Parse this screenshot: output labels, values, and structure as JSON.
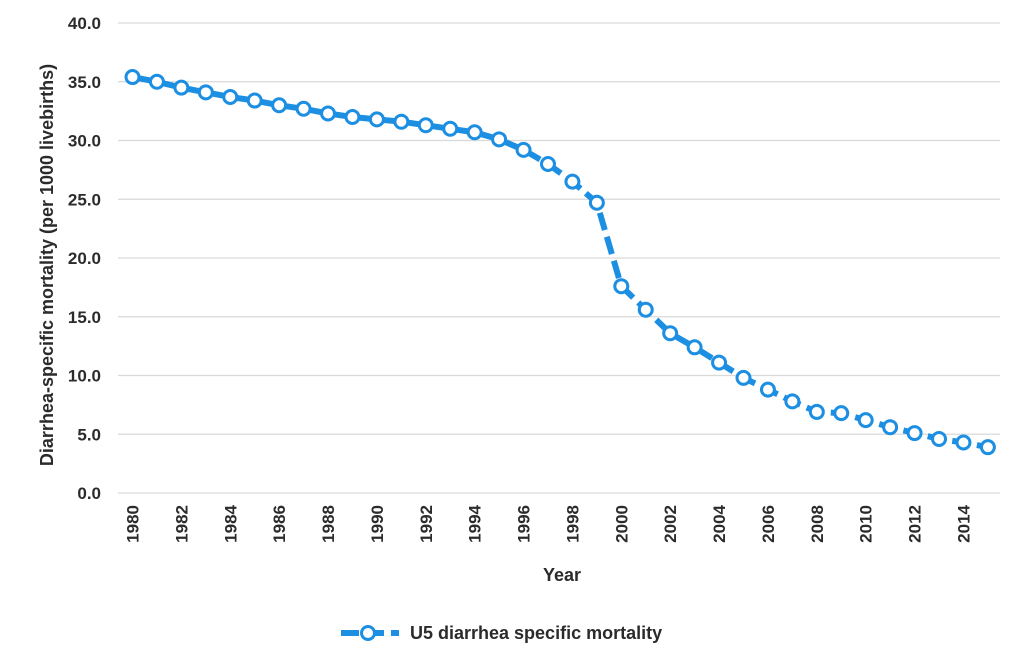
{
  "colors": {
    "series": "#1c8fe3",
    "grid": "#d9d9d9",
    "text": "#2b2b2b",
    "marker_fill": "#ffffff"
  },
  "chart_data": {
    "type": "line",
    "title": "",
    "xlabel": "Year",
    "ylabel": "Diarrhea-specific mortality (per 1000 livebirths)",
    "ylim": [
      0,
      40
    ],
    "xlim": [
      1980,
      2015
    ],
    "grid": true,
    "legend_position": "bottom-center",
    "line_style": "dashed",
    "marker": "open-circle",
    "y_ticks": [
      "0.0",
      "5.0",
      "10.0",
      "15.0",
      "20.0",
      "25.0",
      "30.0",
      "35.0",
      "40.0"
    ],
    "x_ticks": [
      "1980",
      "1982",
      "1984",
      "1986",
      "1988",
      "1990",
      "1992",
      "1994",
      "1996",
      "1998",
      "2000",
      "2002",
      "2004",
      "2006",
      "2008",
      "2010",
      "2012",
      "2014"
    ],
    "series": [
      {
        "name": "U5 diarrhea specific mortality",
        "x": [
          1980,
          1981,
          1982,
          1983,
          1984,
          1985,
          1986,
          1987,
          1988,
          1989,
          1990,
          1991,
          1992,
          1993,
          1994,
          1995,
          1996,
          1997,
          1998,
          1999,
          2000,
          2001,
          2002,
          2003,
          2004,
          2005,
          2006,
          2007,
          2008,
          2009,
          2010,
          2011,
          2012,
          2013,
          2014,
          2015
        ],
        "values": [
          35.4,
          35.0,
          34.5,
          34.1,
          33.7,
          33.4,
          33.0,
          32.7,
          32.3,
          32.0,
          31.8,
          31.6,
          31.3,
          31.0,
          30.7,
          30.1,
          29.2,
          28.0,
          26.5,
          24.7,
          17.6,
          15.6,
          13.6,
          12.4,
          11.1,
          9.8,
          8.8,
          7.8,
          6.9,
          6.8,
          6.2,
          5.6,
          5.1,
          4.6,
          4.3,
          3.9
        ]
      }
    ]
  }
}
